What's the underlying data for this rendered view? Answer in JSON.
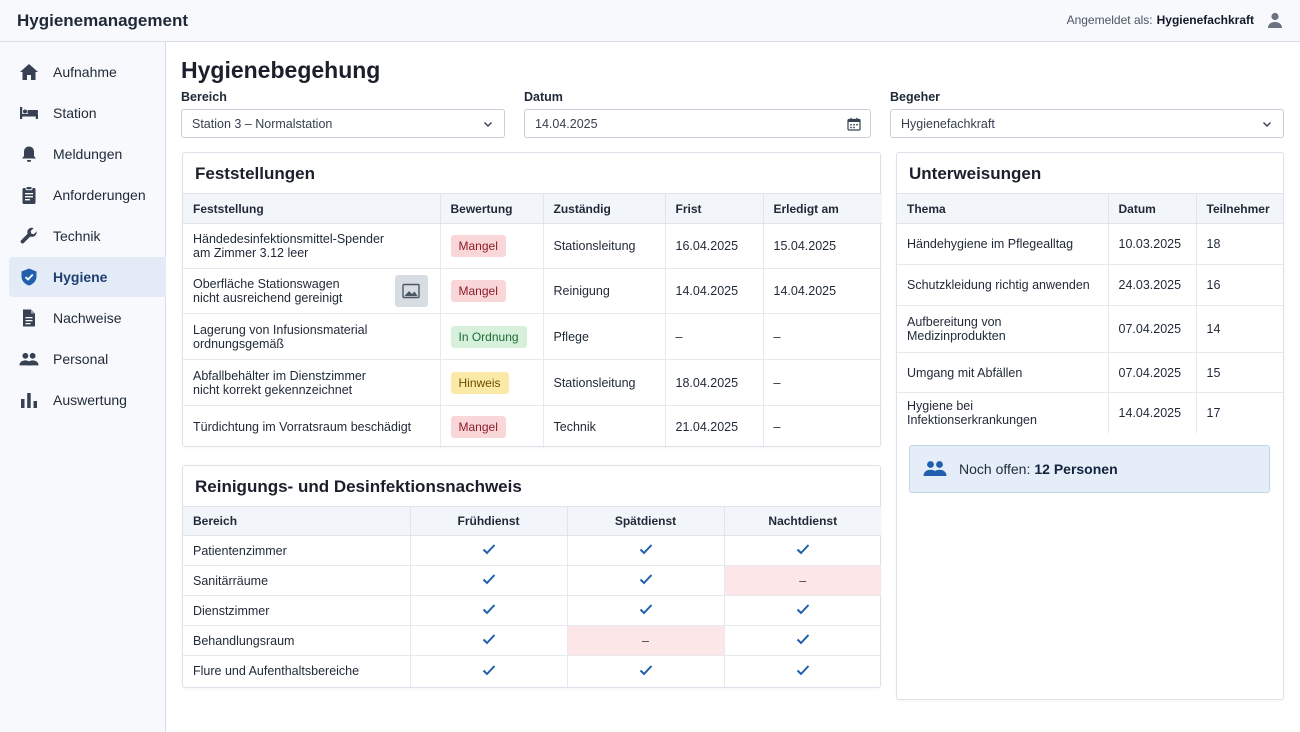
{
  "app": {
    "title": "Hygienemanagement",
    "logged_in_label": "Angemeldet als:",
    "user": "Hygienefachkraft"
  },
  "sidebar": {
    "items": [
      {
        "label": "Aufnahme",
        "icon": "home-icon"
      },
      {
        "label": "Station",
        "icon": "bed-icon"
      },
      {
        "label": "Meldungen",
        "icon": "bell-icon"
      },
      {
        "label": "Anforderungen",
        "icon": "clipboard-icon"
      },
      {
        "label": "Technik",
        "icon": "wrench-icon"
      },
      {
        "label": "Hygiene",
        "icon": "shield-icon",
        "active": true
      },
      {
        "label": "Nachweise",
        "icon": "document-icon"
      },
      {
        "label": "Personal",
        "icon": "people-icon"
      },
      {
        "label": "Auswertung",
        "icon": "bar-chart-icon"
      }
    ]
  },
  "page": {
    "title": "Hygienebegehung"
  },
  "filters": {
    "bereich": {
      "label": "Bereich",
      "value": "Station 3 – Normalstation"
    },
    "datum": {
      "label": "Datum",
      "value": "14.04.2025"
    },
    "begeher": {
      "label": "Begeher",
      "value": "Hygienefachkraft"
    }
  },
  "feststellungen": {
    "title": "Feststellungen",
    "headers": [
      "Feststellung",
      "Bewertung",
      "Zuständig",
      "Frist",
      "Erledigt am"
    ],
    "rows": [
      {
        "text_1": "Händedesinfektionsmittel-Spender",
        "text_2": "am Zimmer 3.12 leer",
        "bewertung": "Mangel",
        "zustaendig": "Stationsleitung",
        "frist": "16.04.2025",
        "erledigt": "15.04.2025"
      },
      {
        "text_1": "Oberfläche Stationswagen",
        "text_2": "nicht ausreichend gereinigt",
        "bewertung": "Mangel",
        "zustaendig": "Reinigung",
        "frist": "14.04.2025",
        "erledigt": "14.04.2025"
      },
      {
        "text_1": "Lagerung von Infusionsmaterial",
        "text_2": "ordnungsgemäß",
        "bewertung": "In Ordnung",
        "zustaendig": "Pflege",
        "frist": "–",
        "erledigt": "–"
      },
      {
        "text_1": "Abfallbehälter im Dienstzimmer",
        "text_2": "nicht korrekt gekennzeichnet",
        "bewertung": "Hinweis",
        "zustaendig": "Stationsleitung",
        "frist": "18.04.2025",
        "erledigt": "–"
      },
      {
        "text_1": "Türdichtung im Vorratsraum beschädigt",
        "text_2": "",
        "bewertung": "Mangel",
        "zustaendig": "Technik",
        "frist": "21.04.2025",
        "erledigt": "–"
      }
    ]
  },
  "reinigung": {
    "title": "Reinigungs- und Desinfektionsnachweis",
    "headers": [
      "Bereich",
      "Frühdienst",
      "Spätdienst",
      "Nachtdienst"
    ],
    "check": "✓",
    "missing": "–",
    "rows": [
      {
        "bereich": "Patientenzimmer",
        "frueh": "✓",
        "spaet": "✓",
        "nacht": "✓"
      },
      {
        "bereich": "Sanitärräume",
        "frueh": "✓",
        "spaet": "✓",
        "nacht": "–"
      },
      {
        "bereich": "Dienstzimmer",
        "frueh": "✓",
        "spaet": "✓",
        "nacht": "✓"
      },
      {
        "bereich": "Behandlungsraum",
        "frueh": "✓",
        "spaet": "–",
        "nacht": "✓"
      },
      {
        "bereich": "Flure und Aufenthaltsbereiche",
        "frueh": "✓",
        "spaet": "✓",
        "nacht": "✓"
      }
    ]
  },
  "unterweisungen": {
    "title": "Unterweisungen",
    "headers": [
      "Thema",
      "Datum",
      "Teilnehmer"
    ],
    "rows": [
      {
        "thema_1": "Händehygiene im Pflegealltag",
        "thema_2": "",
        "datum": "10.03.2025",
        "teilnehmer": "18"
      },
      {
        "thema_1": "Schutzkleidung richtig anwenden",
        "thema_2": "",
        "datum": "24.03.2025",
        "teilnehmer": "16"
      },
      {
        "thema_1": "Aufbereitung von",
        "thema_2": "Medizinprodukten",
        "datum": "07.04.2025",
        "teilnehmer": "14"
      },
      {
        "thema_1": "Umgang mit Abfällen",
        "thema_2": "",
        "datum": "07.04.2025",
        "teilnehmer": "15"
      },
      {
        "thema_1": "Hygiene bei Infektionserkrankungen",
        "thema_2": "",
        "datum": "14.04.2025",
        "teilnehmer": "17"
      }
    ],
    "open_label": "Noch offen:",
    "open_value": "12 Personen"
  },
  "colors": {
    "accent": "#1f5fae",
    "active_nav": "#e3ebf6",
    "mangel": "#f9d6d8",
    "ok": "#d6f0dc",
    "hinweis": "#fbeaa7",
    "missing_cell": "#fde6e7"
  }
}
